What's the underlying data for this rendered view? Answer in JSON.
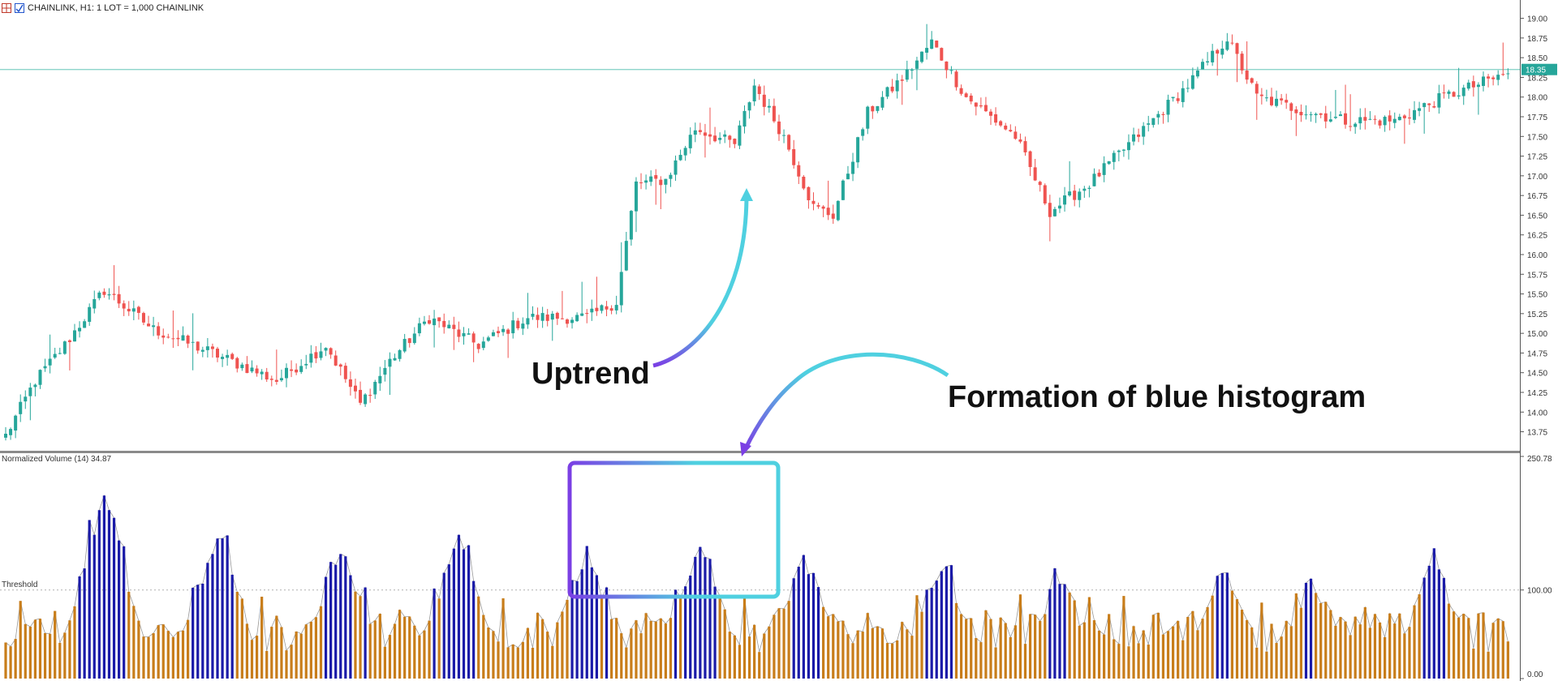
{
  "header": {
    "symbol_text": "CHAINLINK, H1:  1 LOT = 1,000 CHAINLINK"
  },
  "price_axis": {
    "ticks": [
      "19.00",
      "18.75",
      "18.50",
      "18.25",
      "18.00",
      "17.75",
      "17.50",
      "17.25",
      "17.00",
      "16.75",
      "16.50",
      "16.25",
      "16.00",
      "15.75",
      "15.50",
      "15.25",
      "15.00",
      "14.75",
      "14.50",
      "14.25",
      "14.00",
      "13.75"
    ],
    "current_price": "18.35",
    "current_price_color": "#26a69a",
    "range": [
      13.55,
      19.15
    ]
  },
  "volume_axis": {
    "max_label": "250.78",
    "threshold_label": "100.00",
    "zero_label": "0.00",
    "range": [
      0,
      250.78
    ]
  },
  "indicator": {
    "name": "Normalized Volume (14) 34.87",
    "threshold_text": "Threshold",
    "threshold_value": 100
  },
  "annotations": {
    "uptrend": "Uptrend",
    "formation": "Formation of blue histogram"
  },
  "colors": {
    "bull": "#26a69a",
    "bear": "#ef5350",
    "above_threshold": "#1a1aa8",
    "below_threshold": "#c87d1a",
    "arrow_start": "#7b3fe4",
    "arrow_end": "#4fd0e0"
  },
  "chart_data": [
    {
      "type": "candlestick",
      "title": "CHAINLINK, H1",
      "ylim": [
        13.55,
        19.15
      ],
      "close_path_keypoints": [
        {
          "bar": 0,
          "close": 13.7
        },
        {
          "bar": 6,
          "close": 14.4
        },
        {
          "bar": 12,
          "close": 14.85
        },
        {
          "bar": 20,
          "close": 15.55
        },
        {
          "bar": 30,
          "close": 15.05
        },
        {
          "bar": 42,
          "close": 14.75
        },
        {
          "bar": 55,
          "close": 14.4
        },
        {
          "bar": 65,
          "close": 14.85
        },
        {
          "bar": 72,
          "close": 14.1
        },
        {
          "bar": 78,
          "close": 14.65
        },
        {
          "bar": 86,
          "close": 15.2
        },
        {
          "bar": 96,
          "close": 14.85
        },
        {
          "bar": 106,
          "close": 15.2
        },
        {
          "bar": 118,
          "close": 15.2
        },
        {
          "bar": 124,
          "close": 15.4
        },
        {
          "bar": 128,
          "close": 16.9
        },
        {
          "bar": 134,
          "close": 16.95
        },
        {
          "bar": 140,
          "close": 17.6
        },
        {
          "bar": 148,
          "close": 17.4
        },
        {
          "bar": 152,
          "close": 18.15
        },
        {
          "bar": 158,
          "close": 17.5
        },
        {
          "bar": 164,
          "close": 16.6
        },
        {
          "bar": 168,
          "close": 16.5
        },
        {
          "bar": 175,
          "close": 17.8
        },
        {
          "bar": 183,
          "close": 18.3
        },
        {
          "bar": 188,
          "close": 18.7
        },
        {
          "bar": 195,
          "close": 18.0
        },
        {
          "bar": 205,
          "close": 17.5
        },
        {
          "bar": 212,
          "close": 16.55
        },
        {
          "bar": 220,
          "close": 16.9
        },
        {
          "bar": 232,
          "close": 17.65
        },
        {
          "bar": 240,
          "close": 18.15
        },
        {
          "bar": 248,
          "close": 18.75
        },
        {
          "bar": 254,
          "close": 18.0
        },
        {
          "bar": 262,
          "close": 17.85
        },
        {
          "bar": 272,
          "close": 17.7
        },
        {
          "bar": 282,
          "close": 17.7
        },
        {
          "bar": 292,
          "close": 18.0
        },
        {
          "bar": 305,
          "close": 18.3
        }
      ],
      "current_price": 18.35
    },
    {
      "type": "bar",
      "title": "Normalized Volume (14)",
      "ylim": [
        0,
        250.78
      ],
      "threshold": 100,
      "peaks": [
        {
          "bar": 20,
          "value": 215
        },
        {
          "bar": 43,
          "value": 165
        },
        {
          "bar": 68,
          "value": 150
        },
        {
          "bar": 92,
          "value": 160
        },
        {
          "bar": 118,
          "value": 140
        },
        {
          "bar": 141,
          "value": 155
        },
        {
          "bar": 162,
          "value": 135
        },
        {
          "bar": 190,
          "value": 130
        },
        {
          "bar": 214,
          "value": 115
        },
        {
          "bar": 247,
          "value": 120
        },
        {
          "bar": 265,
          "value": 110
        },
        {
          "bar": 290,
          "value": 135
        }
      ]
    }
  ]
}
